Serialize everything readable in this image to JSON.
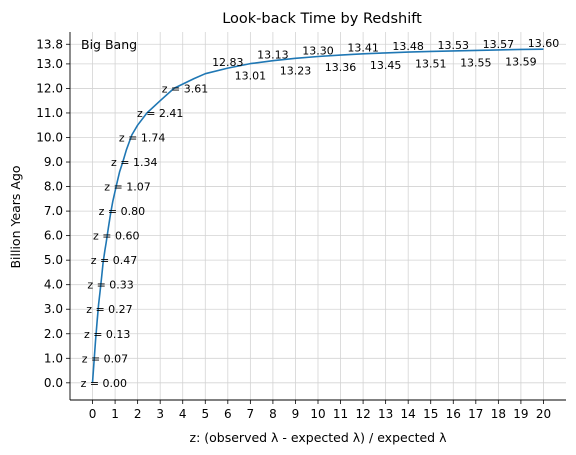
{
  "chart_data": {
    "type": "line",
    "title": "Look-back Time by Redshift",
    "xlabel": "z: (observed λ - expected λ) / expected λ",
    "ylabel": "Billion Years Ago",
    "xlim": [
      -1,
      21
    ],
    "ylim": [
      -0.7,
      14.3
    ],
    "grid": true,
    "xticks": [
      0,
      1,
      2,
      3,
      4,
      5,
      6,
      7,
      8,
      9,
      10,
      11,
      12,
      13,
      14,
      15,
      16,
      17,
      18,
      19,
      20
    ],
    "yticks": [
      0,
      1,
      2,
      3,
      4,
      5,
      6,
      7,
      8,
      9,
      10,
      11,
      12,
      13,
      13.8
    ],
    "ytick_labels": [
      "0.0",
      "1.0",
      "2.0",
      "3.0",
      "4.0",
      "5.0",
      "6.0",
      "7.0",
      "8.0",
      "9.0",
      "10.0",
      "11.0",
      "12.0",
      "13.0",
      "13.8"
    ],
    "series_color": "#1f77b4",
    "corner_label": "Big Bang",
    "line": {
      "x": [
        0,
        0.07,
        0.13,
        0.2,
        0.27,
        0.33,
        0.4,
        0.47,
        0.55,
        0.6,
        0.7,
        0.8,
        0.9,
        1.07,
        1.2,
        1.34,
        1.5,
        1.74,
        2,
        2.41,
        3,
        3.61,
        4.5,
        5,
        6,
        7,
        8,
        9,
        10,
        11,
        12,
        13,
        14,
        15,
        16,
        17,
        18,
        19,
        20
      ],
      "y": [
        0,
        0.9,
        1.7,
        2.5,
        3.2,
        3.7,
        4.3,
        4.9,
        5.4,
        5.7,
        6.3,
        6.9,
        7.4,
        8.1,
        8.6,
        9.0,
        9.5,
        10.1,
        10.5,
        11.0,
        11.5,
        12.0,
        12.4,
        12.6,
        12.83,
        13.01,
        13.13,
        13.23,
        13.3,
        13.36,
        13.41,
        13.45,
        13.48,
        13.51,
        13.53,
        13.55,
        13.57,
        13.59,
        13.6
      ]
    },
    "z_labels": [
      {
        "text": "z = 0.00",
        "x": 0.5,
        "y": 0
      },
      {
        "text": "z = 0.07",
        "x": 0.55,
        "y": 1
      },
      {
        "text": "z = 0.13",
        "x": 0.65,
        "y": 2
      },
      {
        "text": "z = 0.27",
        "x": 0.75,
        "y": 3
      },
      {
        "text": "z = 0.33",
        "x": 0.8,
        "y": 4
      },
      {
        "text": "z = 0.47",
        "x": 0.95,
        "y": 5
      },
      {
        "text": "z = 0.60",
        "x": 1.05,
        "y": 6
      },
      {
        "text": "z = 0.80",
        "x": 1.3,
        "y": 7
      },
      {
        "text": "z = 1.07",
        "x": 1.55,
        "y": 8
      },
      {
        "text": "z = 1.34",
        "x": 1.85,
        "y": 9
      },
      {
        "text": "z = 1.74",
        "x": 2.2,
        "y": 10
      },
      {
        "text": "z = 2.41",
        "x": 3.0,
        "y": 11
      },
      {
        "text": "z = 3.61",
        "x": 4.1,
        "y": 12
      }
    ],
    "value_labels": [
      {
        "text": "12.83",
        "x": 6.0,
        "y": 13.08
      },
      {
        "text": "13.01",
        "x": 7.0,
        "y": 12.52
      },
      {
        "text": "13.13",
        "x": 8.0,
        "y": 13.38
      },
      {
        "text": "13.23",
        "x": 9.0,
        "y": 12.74
      },
      {
        "text": "13.30",
        "x": 10.0,
        "y": 13.55
      },
      {
        "text": "13.36",
        "x": 11.0,
        "y": 12.87
      },
      {
        "text": "13.41",
        "x": 12.0,
        "y": 13.66
      },
      {
        "text": "13.45",
        "x": 13.0,
        "y": 12.96
      },
      {
        "text": "13.48",
        "x": 14.0,
        "y": 13.73
      },
      {
        "text": "13.51",
        "x": 15.0,
        "y": 13.02
      },
      {
        "text": "13.53",
        "x": 16.0,
        "y": 13.78
      },
      {
        "text": "13.55",
        "x": 17.0,
        "y": 13.06
      },
      {
        "text": "13.57",
        "x": 18.0,
        "y": 13.82
      },
      {
        "text": "13.59",
        "x": 19.0,
        "y": 13.1
      },
      {
        "text": "13.60",
        "x": 20.0,
        "y": 13.85
      }
    ]
  }
}
